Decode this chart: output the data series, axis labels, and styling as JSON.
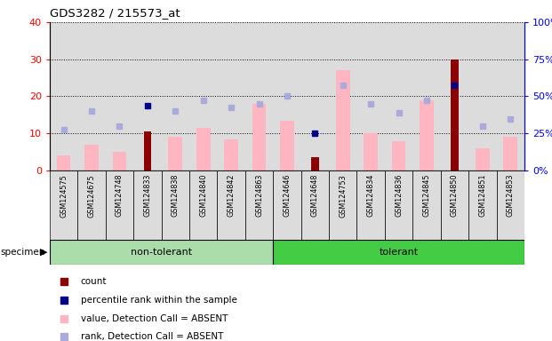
{
  "title": "GDS3282 / 215573_at",
  "samples": [
    "GSM124575",
    "GSM124675",
    "GSM124748",
    "GSM124833",
    "GSM124838",
    "GSM124840",
    "GSM124842",
    "GSM124863",
    "GSM124646",
    "GSM124648",
    "GSM124753",
    "GSM124834",
    "GSM124836",
    "GSM124845",
    "GSM124850",
    "GSM124851",
    "GSM124853"
  ],
  "n_nontolerant": 8,
  "n_tolerant": 9,
  "value_absent": [
    4,
    7,
    5,
    null,
    9,
    11.5,
    8.5,
    18,
    13.5,
    null,
    27,
    10,
    8,
    19,
    null,
    6,
    9
  ],
  "rank_absent_pct": [
    27.5,
    40,
    30,
    null,
    40,
    47.5,
    42.5,
    45,
    50,
    null,
    57.5,
    45,
    38.75,
    47.5,
    null,
    30,
    35
  ],
  "count": [
    null,
    null,
    null,
    10.5,
    null,
    null,
    null,
    null,
    null,
    3.5,
    null,
    null,
    null,
    null,
    30,
    null,
    null
  ],
  "percentile_rank_pct": [
    null,
    null,
    null,
    43.75,
    null,
    null,
    null,
    null,
    null,
    25,
    null,
    null,
    null,
    null,
    57.5,
    null,
    null
  ],
  "left_ylim": [
    0,
    40
  ],
  "right_ylim": [
    0,
    100
  ],
  "left_yticks": [
    0,
    10,
    20,
    30,
    40
  ],
  "right_yticks": [
    0,
    25,
    50,
    75,
    100
  ],
  "left_yticklabels": [
    "0",
    "10",
    "20",
    "30",
    "40"
  ],
  "right_yticklabels": [
    "0%",
    "25%",
    "50%",
    "75%",
    "100%"
  ],
  "color_count": "#8B0000",
  "color_percentile": "#00008B",
  "color_value_absent": "#FFB6C1",
  "color_rank_absent": "#AAAADD",
  "color_nontolerant": "#AADDAA",
  "color_tolerant": "#44CC44",
  "bg_color": "#DCDCDC",
  "white_bg": "#FFFFFF",
  "legend_items": [
    {
      "label": "count",
      "color": "#8B0000"
    },
    {
      "label": "percentile rank within the sample",
      "color": "#00008B"
    },
    {
      "label": "value, Detection Call = ABSENT",
      "color": "#FFB6C1"
    },
    {
      "label": "rank, Detection Call = ABSENT",
      "color": "#AAAADD"
    }
  ]
}
